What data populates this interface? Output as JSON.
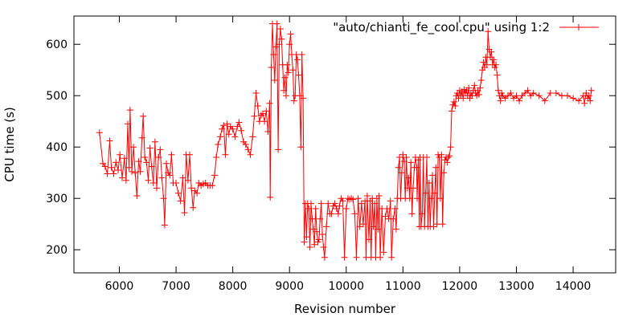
{
  "chart_data": {
    "type": "line",
    "title": "",
    "xlabel": "Revision number",
    "ylabel": "CPU time (s)",
    "xlim": [
      5200,
      14750
    ],
    "ylim": [
      155,
      655
    ],
    "x_ticks": [
      6000,
      7000,
      8000,
      9000,
      10000,
      11000,
      12000,
      13000,
      14000
    ],
    "y_ticks": [
      200,
      300,
      400,
      500,
      600
    ],
    "grid": false,
    "legend_position": "top-right",
    "series_color": "#ff0000",
    "marker": "plus",
    "series": [
      {
        "name": "\"auto/chianti_fe_cool.cpu\" using 1:2",
        "points": [
          [
            5650,
            428
          ],
          [
            5710,
            368
          ],
          [
            5750,
            362
          ],
          [
            5790,
            348
          ],
          [
            5830,
            412
          ],
          [
            5860,
            360
          ],
          [
            5900,
            348
          ],
          [
            5940,
            370
          ],
          [
            5980,
            355
          ],
          [
            6010,
            385
          ],
          [
            6050,
            340
          ],
          [
            6090,
            378
          ],
          [
            6120,
            335
          ],
          [
            6150,
            445
          ],
          [
            6170,
            360
          ],
          [
            6190,
            472
          ],
          [
            6220,
            352
          ],
          [
            6250,
            400
          ],
          [
            6280,
            350
          ],
          [
            6310,
            305
          ],
          [
            6340,
            372
          ],
          [
            6370,
            352
          ],
          [
            6400,
            418
          ],
          [
            6420,
            460
          ],
          [
            6450,
            380
          ],
          [
            6480,
            370
          ],
          [
            6510,
            335
          ],
          [
            6540,
            398
          ],
          [
            6570,
            362
          ],
          [
            6600,
            330
          ],
          [
            6630,
            410
          ],
          [
            6660,
            320
          ],
          [
            6690,
            380
          ],
          [
            6720,
            395
          ],
          [
            6750,
            340
          ],
          [
            6780,
            300
          ],
          [
            6800,
            248
          ],
          [
            6830,
            368
          ],
          [
            6860,
            350
          ],
          [
            6890,
            345
          ],
          [
            6920,
            385
          ],
          [
            6950,
            330
          ],
          [
            7000,
            330
          ],
          [
            7040,
            310
          ],
          [
            7080,
            295
          ],
          [
            7120,
            340
          ],
          [
            7150,
            272
          ],
          [
            7180,
            385
          ],
          [
            7210,
            335
          ],
          [
            7240,
            385
          ],
          [
            7270,
            320
          ],
          [
            7300,
            282
          ],
          [
            7330,
            315
          ],
          [
            7370,
            310
          ],
          [
            7400,
            330
          ],
          [
            7440,
            325
          ],
          [
            7480,
            328
          ],
          [
            7520,
            330
          ],
          [
            7560,
            325
          ],
          [
            7600,
            325
          ],
          [
            7640,
            325
          ],
          [
            7680,
            345
          ],
          [
            7710,
            380
          ],
          [
            7740,
            405
          ],
          [
            7780,
            420
          ],
          [
            7810,
            435
          ],
          [
            7840,
            442
          ],
          [
            7870,
            385
          ],
          [
            7900,
            445
          ],
          [
            7930,
            425
          ],
          [
            7960,
            440
          ],
          [
            8000,
            435
          ],
          [
            8040,
            420
          ],
          [
            8080,
            440
          ],
          [
            8110,
            448
          ],
          [
            8150,
            432
          ],
          [
            8190,
            410
          ],
          [
            8230,
            405
          ],
          [
            8270,
            395
          ],
          [
            8310,
            385
          ],
          [
            8350,
            420
          ],
          [
            8380,
            460
          ],
          [
            8410,
            505
          ],
          [
            8440,
            480
          ],
          [
            8470,
            450
          ],
          [
            8500,
            462
          ],
          [
            8530,
            465
          ],
          [
            8560,
            450
          ],
          [
            8590,
            470
          ],
          [
            8620,
            430
          ],
          [
            8650,
            485
          ],
          [
            8660,
            302
          ],
          [
            8680,
            555
          ],
          [
            8700,
            640
          ],
          [
            8720,
            580
          ],
          [
            8740,
            530
          ],
          [
            8760,
            595
          ],
          [
            8780,
            640
          ],
          [
            8800,
            395
          ],
          [
            8820,
            600
          ],
          [
            8840,
            630
          ],
          [
            8860,
            610
          ],
          [
            8880,
            560
          ],
          [
            8900,
            510
          ],
          [
            8920,
            535
          ],
          [
            8940,
            500
          ],
          [
            8960,
            560
          ],
          [
            8980,
            545
          ],
          [
            9000,
            600
          ],
          [
            9020,
            620
          ],
          [
            9040,
            580
          ],
          [
            9060,
            550
          ],
          [
            9080,
            490
          ],
          [
            9100,
            500
          ],
          [
            9120,
            580
          ],
          [
            9140,
            570
          ],
          [
            9160,
            540
          ],
          [
            9180,
            500
          ],
          [
            9200,
            400
          ],
          [
            9220,
            580
          ],
          [
            9240,
            495
          ],
          [
            9260,
            215
          ],
          [
            9280,
            290
          ],
          [
            9300,
            225
          ],
          [
            9320,
            290
          ],
          [
            9340,
            280
          ],
          [
            9360,
            205
          ],
          [
            9380,
            290
          ],
          [
            9400,
            260
          ],
          [
            9420,
            240
          ],
          [
            9440,
            210
          ],
          [
            9460,
            280
          ],
          [
            9480,
            235
          ],
          [
            9500,
            215
          ],
          [
            9520,
            220
          ],
          [
            9540,
            260
          ],
          [
            9560,
            290
          ],
          [
            9580,
            230
          ],
          [
            9600,
            205
          ],
          [
            9620,
            185
          ],
          [
            9650,
            245
          ],
          [
            9680,
            290
          ],
          [
            9710,
            270
          ],
          [
            9740,
            270
          ],
          [
            9770,
            285
          ],
          [
            9800,
            290
          ],
          [
            9830,
            280
          ],
          [
            9860,
            270
          ],
          [
            9880,
            285
          ],
          [
            9910,
            300
          ],
          [
            9940,
            295
          ],
          [
            9970,
            185
          ],
          [
            10000,
            280
          ],
          [
            10030,
            300
          ],
          [
            10060,
            298
          ],
          [
            10090,
            300
          ],
          [
            10120,
            298
          ],
          [
            10150,
            270
          ],
          [
            10180,
            185
          ],
          [
            10210,
            300
          ],
          [
            10240,
            245
          ],
          [
            10270,
            290
          ],
          [
            10300,
            250
          ],
          [
            10330,
            295
          ],
          [
            10350,
            185
          ],
          [
            10370,
            305
          ],
          [
            10400,
            220
          ],
          [
            10420,
            295
          ],
          [
            10440,
            185
          ],
          [
            10460,
            300
          ],
          [
            10480,
            245
          ],
          [
            10500,
            290
          ],
          [
            10520,
            185
          ],
          [
            10540,
            300
          ],
          [
            10560,
            240
          ],
          [
            10580,
            305
          ],
          [
            10600,
            185
          ],
          [
            10630,
            280
          ],
          [
            10660,
            195
          ],
          [
            10690,
            265
          ],
          [
            10720,
            280
          ],
          [
            10750,
            260
          ],
          [
            10780,
            295
          ],
          [
            10800,
            185
          ],
          [
            10830,
            260
          ],
          [
            10860,
            280
          ],
          [
            10880,
            240
          ],
          [
            10900,
            300
          ],
          [
            10920,
            360
          ],
          [
            10940,
            380
          ],
          [
            10960,
            300
          ],
          [
            10980,
            350
          ],
          [
            11000,
            385
          ],
          [
            11020,
            372
          ],
          [
            11040,
            300
          ],
          [
            11060,
            380
          ],
          [
            11080,
            320
          ],
          [
            11100,
            340
          ],
          [
            11120,
            300
          ],
          [
            11140,
            370
          ],
          [
            11160,
            270
          ],
          [
            11180,
            320
          ],
          [
            11200,
            360
          ],
          [
            11220,
            380
          ],
          [
            11240,
            360
          ],
          [
            11250,
            300
          ],
          [
            11270,
            375
          ],
          [
            11290,
            245
          ],
          [
            11300,
            380
          ],
          [
            11320,
            245
          ],
          [
            11340,
            270
          ],
          [
            11360,
            380
          ],
          [
            11380,
            245
          ],
          [
            11400,
            310
          ],
          [
            11420,
            380
          ],
          [
            11440,
            245
          ],
          [
            11460,
            330
          ],
          [
            11480,
            245
          ],
          [
            11500,
            300
          ],
          [
            11520,
            345
          ],
          [
            11540,
            245
          ],
          [
            11560,
            310
          ],
          [
            11580,
            360
          ],
          [
            11600,
            250
          ],
          [
            11620,
            385
          ],
          [
            11640,
            380
          ],
          [
            11660,
            300
          ],
          [
            11680,
            385
          ],
          [
            11700,
            250
          ],
          [
            11720,
            350
          ],
          [
            11740,
            375
          ],
          [
            11760,
            380
          ],
          [
            11780,
            370
          ],
          [
            11800,
            380
          ],
          [
            11820,
            383
          ],
          [
            11840,
            400
          ],
          [
            11860,
            470
          ],
          [
            11880,
            482
          ],
          [
            11900,
            488
          ],
          [
            11920,
            480
          ],
          [
            11940,
            500
          ],
          [
            11960,
            505
          ],
          [
            11980,
            495
          ],
          [
            12000,
            510
          ],
          [
            12020,
            500
          ],
          [
            12040,
            508
          ],
          [
            12060,
            495
          ],
          [
            12080,
            512
          ],
          [
            12100,
            505
          ],
          [
            12120,
            510
          ],
          [
            12140,
            500
          ],
          [
            12160,
            515
          ],
          [
            12180,
            495
          ],
          [
            12200,
            505
          ],
          [
            12220,
            500
          ],
          [
            12240,
            510
          ],
          [
            12260,
            520
          ],
          [
            12280,
            505
          ],
          [
            12300,
            500
          ],
          [
            12320,
            510
          ],
          [
            12340,
            502
          ],
          [
            12360,
            515
          ],
          [
            12380,
            530
          ],
          [
            12400,
            550
          ],
          [
            12420,
            565
          ],
          [
            12440,
            555
          ],
          [
            12460,
            575
          ],
          [
            12480,
            560
          ],
          [
            12500,
            625
          ],
          [
            12520,
            590
          ],
          [
            12540,
            575
          ],
          [
            12560,
            585
          ],
          [
            12580,
            560
          ],
          [
            12600,
            570
          ],
          [
            12620,
            555
          ],
          [
            12640,
            560
          ],
          [
            12660,
            540
          ],
          [
            12680,
            510
          ],
          [
            12700,
            500
          ],
          [
            12720,
            490
          ],
          [
            12740,
            505
          ],
          [
            12760,
            500
          ],
          [
            12800,
            495
          ],
          [
            12850,
            500
          ],
          [
            12900,
            505
          ],
          [
            12950,
            495
          ],
          [
            13000,
            500
          ],
          [
            13050,
            490
          ],
          [
            13100,
            500
          ],
          [
            13150,
            505
          ],
          [
            13200,
            510
          ],
          [
            13250,
            500
          ],
          [
            13300,
            505
          ],
          [
            13400,
            500
          ],
          [
            13500,
            490
          ],
          [
            13600,
            505
          ],
          [
            13700,
            505
          ],
          [
            13800,
            500
          ],
          [
            13900,
            500
          ],
          [
            14000,
            495
          ],
          [
            14100,
            490
          ],
          [
            14180,
            500
          ],
          [
            14200,
            485
          ],
          [
            14230,
            505
          ],
          [
            14260,
            495
          ],
          [
            14280,
            500
          ],
          [
            14300,
            490
          ],
          [
            14320,
            510
          ]
        ]
      }
    ]
  }
}
